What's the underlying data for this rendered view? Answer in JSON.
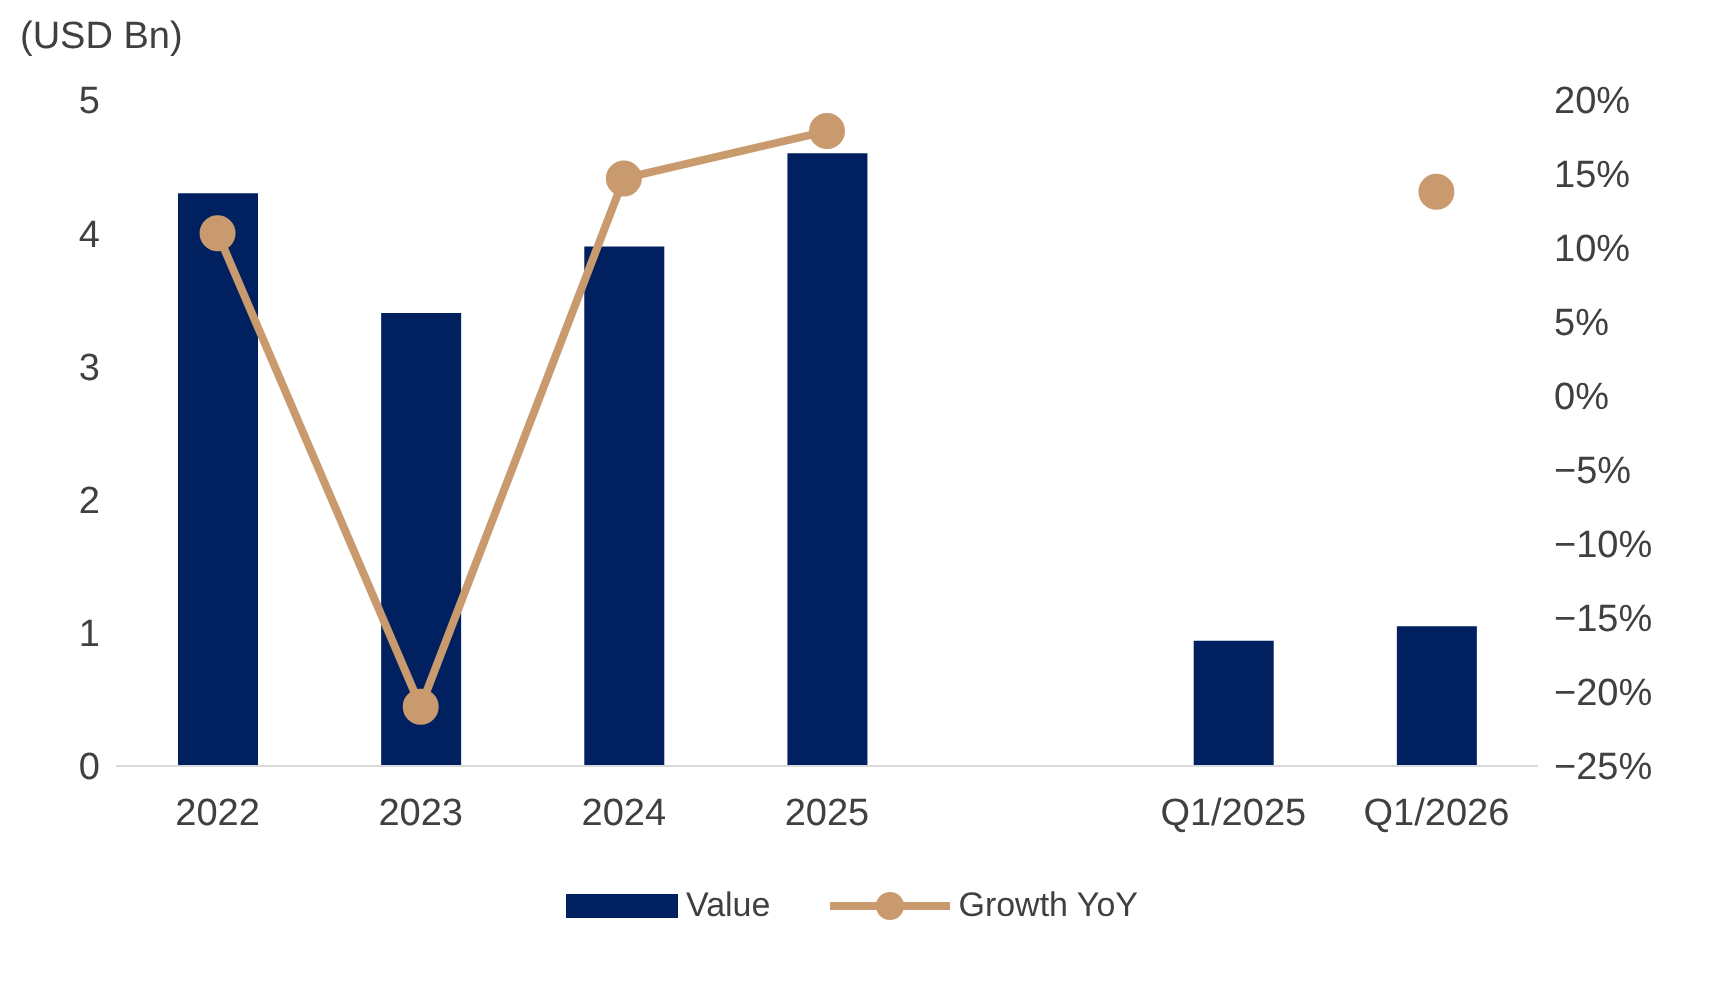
{
  "chart_data": {
    "type": "bar",
    "ylabel": "(USD Bn)",
    "categories": [
      "2022",
      "2023",
      "2024",
      "2025",
      null,
      "Q1/2025",
      "Q1/2026"
    ],
    "series": [
      {
        "name": "Value",
        "color": "#002060",
        "values": [
          4.3,
          3.4,
          3.9,
          4.6,
          null,
          0.94,
          1.05
        ]
      },
      {
        "name": "Growth YoY",
        "type": "line",
        "axis": "y2",
        "color": "#c99a6e",
        "values": [
          11,
          -21,
          14.7,
          17.9,
          null,
          null,
          13.8
        ]
      }
    ],
    "ylim": [
      0,
      5
    ],
    "yticks": [
      0,
      1,
      2,
      3,
      4,
      5
    ],
    "y2lim": [
      -25,
      20
    ],
    "y2ticks": [
      {
        "value": 20,
        "label": "20%"
      },
      {
        "value": 15,
        "label": "15%"
      },
      {
        "value": 10,
        "label": "10%"
      },
      {
        "value": 5,
        "label": "5%"
      },
      {
        "value": 0,
        "label": "0%"
      },
      {
        "value": -5,
        "label": "−5%"
      },
      {
        "value": -10,
        "label": "−10%"
      },
      {
        "value": -15,
        "label": "−15%"
      },
      {
        "value": -20,
        "label": "−20%"
      },
      {
        "value": -25,
        "label": "−25%"
      }
    ],
    "grid": false,
    "legend": "bottom",
    "marker": "circle",
    "line_style": "solid"
  }
}
